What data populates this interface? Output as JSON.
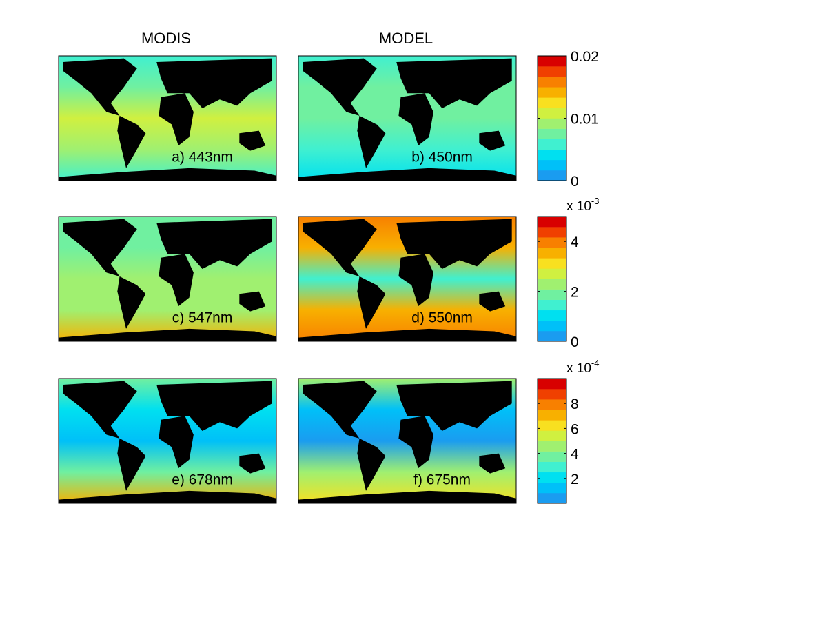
{
  "column_titles": [
    "MODIS",
    "MODEL"
  ],
  "panels": [
    {
      "label": "a) 443nm"
    },
    {
      "label": "b) 450nm"
    },
    {
      "label": "c) 547nm"
    },
    {
      "label": "d) 550nm"
    },
    {
      "label": "e) 678nm"
    },
    {
      "label": "f) 675nm"
    }
  ],
  "colormap": [
    "#1a9cf0",
    "#00c0f8",
    "#00e0f0",
    "#40f0d0",
    "#70f0a0",
    "#a0f070",
    "#d0f040",
    "#f8e020",
    "#f8b000",
    "#f88000",
    "#f04000",
    "#d80000"
  ],
  "colorbars": [
    {
      "ylim": [
        0,
        0.02
      ],
      "yticks": [
        0,
        0.01,
        0.02
      ]
    },
    {
      "ylim": [
        0,
        5
      ],
      "yticks": [
        0,
        2,
        4
      ],
      "multiplier": {
        "base": "x 10",
        "exponent": "-3"
      }
    },
    {
      "ylim": [
        0,
        10
      ],
      "yticks": [
        2,
        4,
        6,
        8
      ],
      "multiplier": {
        "base": "x 10",
        "exponent": "-4"
      }
    }
  ]
}
